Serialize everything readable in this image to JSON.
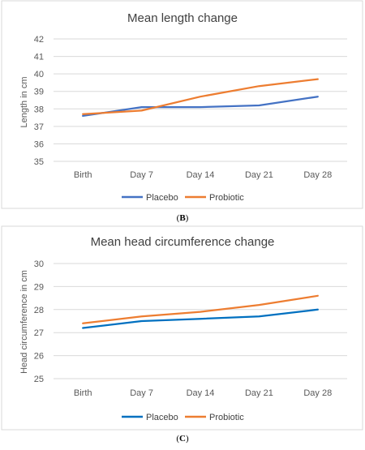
{
  "panels": [
    {
      "caption_prefix": "(",
      "caption_letter": "B",
      "caption_suffix": ")"
    },
    {
      "caption_prefix": "(",
      "caption_letter": "C",
      "caption_suffix": ")"
    }
  ],
  "chart_data": [
    {
      "type": "line",
      "title": "Mean length change",
      "xlabel": "",
      "ylabel": "Length in cm",
      "categories": [
        "Birth",
        "Day 7",
        "Day 14",
        "Day 21",
        "Day 28"
      ],
      "yticks": [
        "35",
        "36",
        "37",
        "38",
        "39",
        "40",
        "41",
        "42"
      ],
      "ylim": [
        35,
        42
      ],
      "grid": true,
      "legend_position": "bottom",
      "series": [
        {
          "name": "Placebo",
          "color": "#4472c4",
          "values": [
            37.6,
            38.1,
            38.1,
            38.2,
            38.7
          ]
        },
        {
          "name": "Probiotic",
          "color": "#ed7d31",
          "values": [
            37.7,
            37.9,
            38.7,
            39.3,
            39.7
          ]
        }
      ]
    },
    {
      "type": "line",
      "title": "Mean head circumference change",
      "xlabel": "",
      "ylabel": "Head circumference in cm",
      "categories": [
        "Birth",
        "Day 7",
        "Day 14",
        "Day 21",
        "Day 28"
      ],
      "yticks": [
        "25",
        "26",
        "27",
        "28",
        "29",
        "30"
      ],
      "ylim": [
        25,
        30
      ],
      "grid": true,
      "legend_position": "bottom",
      "series": [
        {
          "name": "Placebo",
          "color": "#0070c0",
          "values": [
            27.2,
            27.5,
            27.6,
            27.7,
            28.0
          ]
        },
        {
          "name": "Probiotic",
          "color": "#ed7d31",
          "values": [
            27.4,
            27.7,
            27.9,
            28.2,
            28.6
          ]
        }
      ]
    }
  ]
}
